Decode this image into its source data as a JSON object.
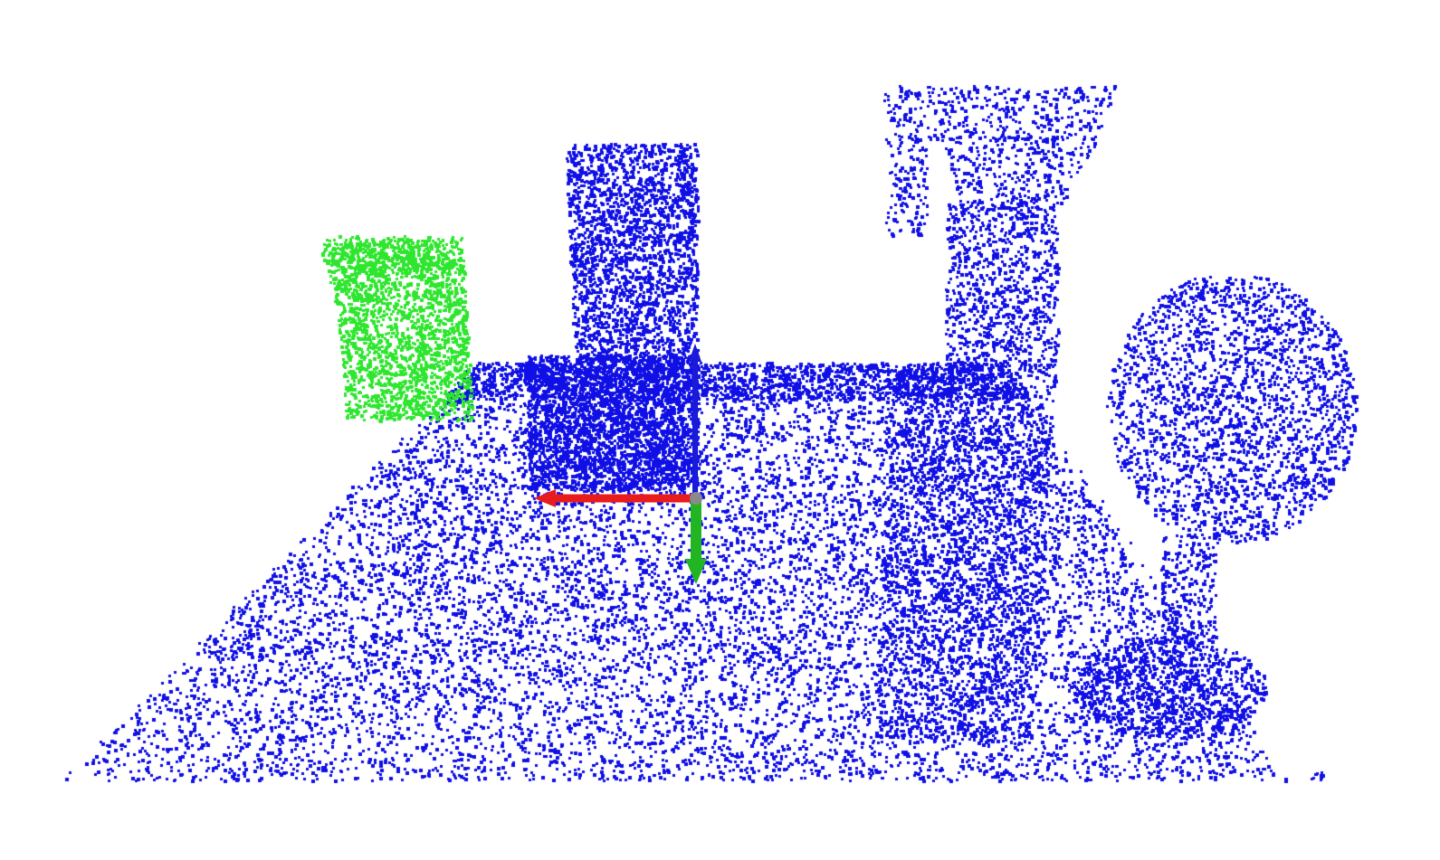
{
  "view": {
    "background": "#ffffff"
  },
  "point_cloud": {
    "scene_color": "#1010e6",
    "segmented_color": "#2de62d",
    "objects": [
      {
        "name": "table-plane",
        "color": "scene"
      },
      {
        "name": "green-cylinder-can",
        "color": "segmented"
      },
      {
        "name": "tall-box",
        "color": "scene"
      },
      {
        "name": "spray-bottle",
        "color": "scene"
      },
      {
        "name": "wine-glass",
        "color": "scene"
      }
    ]
  },
  "axes": {
    "x_color": "#e81c1c",
    "y_color": "#22b522",
    "z_color": "#1a1ad8",
    "origin_color": "#8a8a8a"
  }
}
